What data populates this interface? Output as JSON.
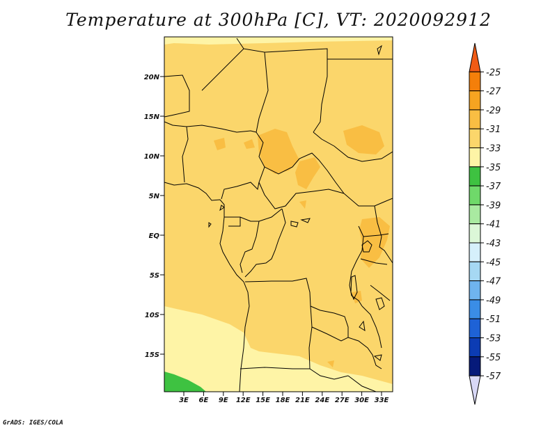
{
  "title": "Temperature at 300hPa [C], VT: 2020092912",
  "credit": "GrADS: IGES/COLA",
  "map": {
    "lat_ticks": [
      "20N",
      "15N",
      "10N",
      "5N",
      "EQ",
      "5S",
      "10S",
      "15S"
    ],
    "lon_ticks": [
      "3E",
      "6E",
      "9E",
      "12E",
      "15E",
      "18E",
      "21E",
      "24E",
      "27E",
      "30E",
      "33E"
    ]
  },
  "colorbar": {
    "labels": [
      "-25",
      "-27",
      "-29",
      "-31",
      "-33",
      "-35",
      "-37",
      "-39",
      "-41",
      "-43",
      "-45",
      "-47",
      "-49",
      "-51",
      "-53",
      "-55",
      "-57"
    ],
    "colors": [
      "#f05b15",
      "#f47f0a",
      "#f6a421",
      "#f9be43",
      "#fbd66b",
      "#fef4a6",
      "#3ec241",
      "#6fd96a",
      "#a9eaa1",
      "#dcf7d8",
      "#d6f0fb",
      "#a6d8f3",
      "#6fb4ee",
      "#3a8de6",
      "#1e62d6",
      "#0c3cb4",
      "#061a7a",
      "#d8d8f6"
    ],
    "fill_colors": {
      "level_-29": "#f6a421",
      "level_-31": "#f9be43",
      "level_-33": "#fbd66b",
      "level_-35": "#fef4a6",
      "level_-37": "#3ec241"
    }
  }
}
